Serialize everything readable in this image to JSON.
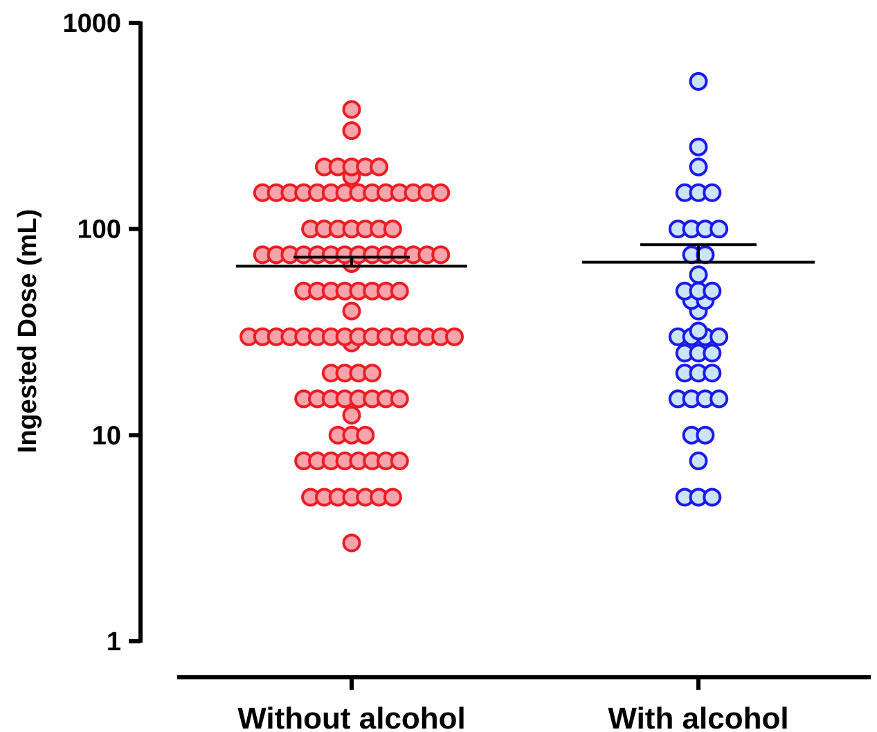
{
  "chart_data": {
    "type": "scatter",
    "title": "",
    "xlabel": "",
    "ylabel": "Ingested Dose (mL)",
    "y_scale": "log",
    "ylim": [
      1,
      1000
    ],
    "y_ticks": [
      "1",
      "10",
      "100",
      "1000"
    ],
    "grid": false,
    "legend": "none",
    "categories": [
      "Without alcohol",
      "With alcohol"
    ],
    "series": [
      {
        "category": "Without alcohol",
        "fill": "#f4a4aa",
        "stroke": "#ee1c24",
        "mean": 66,
        "sem_upper": 73,
        "values": [
          380,
          300,
          180,
          200,
          200,
          200,
          200,
          200,
          150,
          150,
          150,
          150,
          150,
          150,
          150,
          150,
          150,
          150,
          150,
          150,
          150,
          150,
          100,
          100,
          100,
          100,
          100,
          100,
          100,
          75,
          75,
          75,
          75,
          75,
          75,
          75,
          75,
          75,
          75,
          75,
          75,
          75,
          75,
          68,
          50,
          50,
          50,
          50,
          50,
          50,
          50,
          50,
          40,
          30,
          30,
          30,
          30,
          30,
          30,
          30,
          30,
          30,
          30,
          30,
          30,
          30,
          30,
          30,
          30,
          28,
          20,
          20,
          20,
          20,
          15,
          15,
          15,
          15,
          15,
          15,
          15,
          15,
          12.5,
          10,
          10,
          10,
          7.5,
          7.5,
          7.5,
          7.5,
          7.5,
          7.5,
          7.5,
          7.5,
          5,
          5,
          5,
          5,
          5,
          5,
          5,
          3
        ]
      },
      {
        "category": "With alcohol",
        "fill": "#cce4f8",
        "stroke": "#1a1aee",
        "mean": 69,
        "sem_upper": 84,
        "values": [
          520,
          250,
          200,
          150,
          150,
          150,
          100,
          100,
          100,
          100,
          75,
          75,
          60,
          50,
          50,
          50,
          45,
          45,
          40,
          32,
          30,
          30,
          30,
          30,
          25,
          25,
          25,
          20,
          20,
          20,
          15,
          15,
          15,
          15,
          10,
          10,
          7.5,
          5,
          5,
          5
        ]
      }
    ]
  }
}
